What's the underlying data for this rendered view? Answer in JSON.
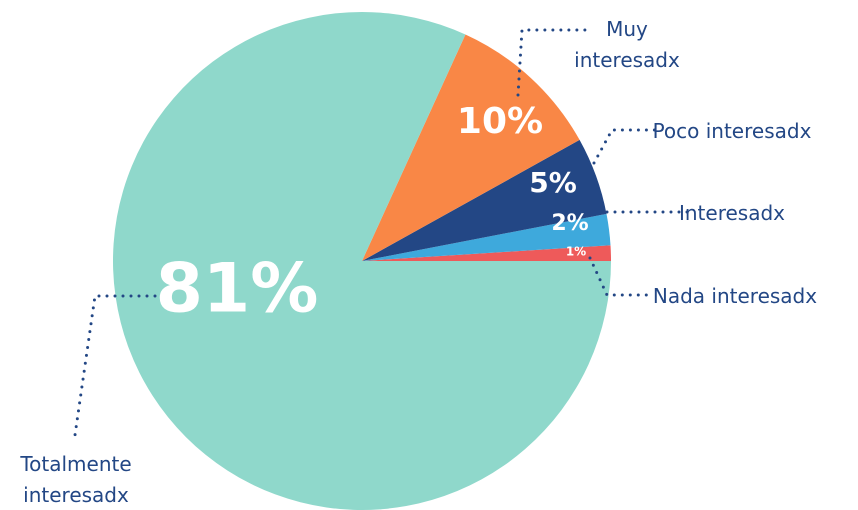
{
  "chart_data": {
    "type": "pie",
    "categories": [
      "Nada interesadx",
      "Poco interesadx",
      "Interesadx",
      "Muy interesadx",
      "Totalmente interesadx"
    ],
    "values": [
      1,
      2,
      5,
      10,
      81
    ],
    "value_labels": [
      "1%",
      "2%",
      "5%",
      "10%",
      "81%"
    ],
    "colors": [
      "#ee5a5a",
      "#3ea9dc",
      "#234785",
      "#f98746",
      "#8fd8cb"
    ]
  }
}
